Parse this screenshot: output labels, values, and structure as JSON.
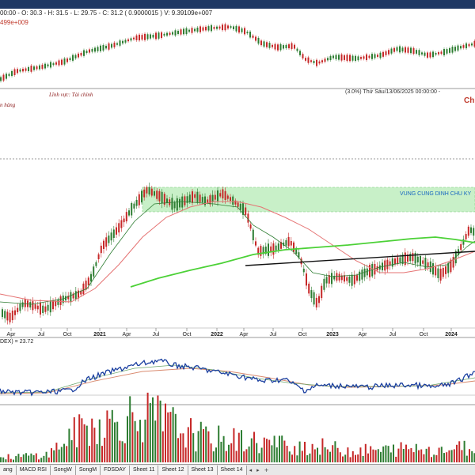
{
  "top_panel": {
    "ohlc_text": "00:00 - O: 30.3 - H: 31.5 - L: 29.75 - C: 31.2 ( 0.9000015 ) V: 9.39109e+007",
    "ohlc_text_2": "499e+009"
  },
  "main_panel": {
    "sector_label": "Lĩnh vực: Tài chính",
    "industry_label": "n hàng",
    "info_text": "(3.0%) Thứ Sáu/13/06/2025 00:00:00 -",
    "corner_label": "Ch",
    "zone_label": "VUNG CUNG DINH CHU KY"
  },
  "time_axis": [
    "Apr",
    "Jul",
    "Oct",
    "2021",
    "Apr",
    "Jul",
    "Oct",
    "2022",
    "Apr",
    "Jul",
    "Oct",
    "2023",
    "Apr",
    "Jul",
    "Oct",
    "2024"
  ],
  "indicator_panel": {
    "label": "DEX) = 23.72"
  },
  "sheet_tabs": [
    "ang",
    "MACD RSI",
    "SongW",
    "SongM",
    "FDSDAY",
    "Sheet 11",
    "Sheet 12",
    "Sheet 13",
    "Sheet 14"
  ],
  "tab_nav": [
    "◂",
    "▸",
    "+"
  ],
  "colors": {
    "title_bar": "#1f3864",
    "candle_up": "#2e7d32",
    "candle_down": "#c62828",
    "ma_short": "#2e7d32",
    "ma_mid": "#e57373",
    "ma_long": "#4cd137",
    "zone_fill": "#c8f0c8",
    "zone_text": "#1565c0",
    "indicator_line": "#1a3fa0",
    "volume_up": "#2e7d32",
    "volume_down": "#c62828"
  }
}
